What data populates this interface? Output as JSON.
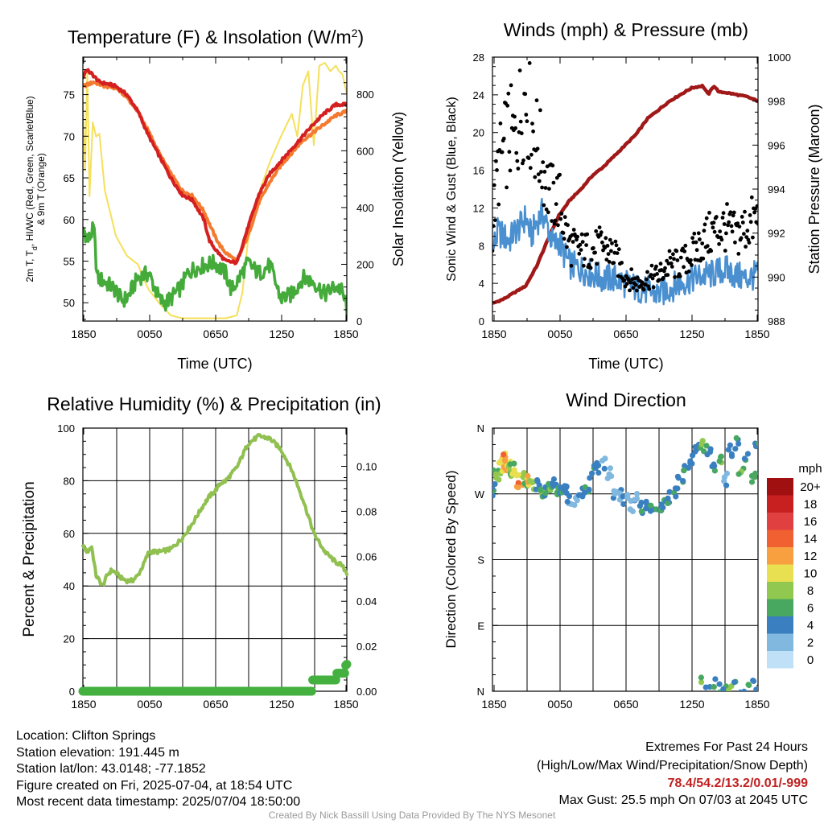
{
  "chart_data": [
    {
      "id": "temp",
      "type": "line",
      "title": "Temperature (F) & Insolation (W/m",
      "title_sup": "2",
      "title_end": ")",
      "xlabel": "Time (UTC)",
      "ylabel_lines": [
        "2m T, T",
        "d",
        ", HI/WC (Red, Green, Scarlet/Blue)",
        "& 9m T (Orange)"
      ],
      "y2label": "Solar Insolation (Yellow)",
      "x_ticks": [
        "1850",
        "0050",
        "0650",
        "1250",
        "1850"
      ],
      "y_ticks": [
        "50",
        "55",
        "60",
        "65",
        "70",
        "75"
      ],
      "y2_ticks": [
        "0",
        "200",
        "400",
        "600",
        "800"
      ],
      "ylim": [
        47.8,
        79.5
      ],
      "y2lim": [
        0,
        930
      ],
      "grid": false,
      "colors": {
        "temp": "#d42020",
        "hi": "#d6302c",
        "t9": "#f47a30",
        "dew": "#44aa3a",
        "solar": "#f5e05a"
      },
      "series": [
        {
          "name": "2m T",
          "color": "#d42020",
          "axis": "left",
          "x": [
            0,
            0.3,
            0.8,
            1.5,
            2.5,
            3,
            4,
            5,
            6,
            7,
            8,
            9,
            10,
            11,
            11.5,
            12,
            12.5,
            13,
            14,
            15,
            16,
            17,
            18,
            19,
            20,
            21,
            22,
            23,
            24
          ],
          "y": [
            77,
            78,
            77.5,
            76.5,
            76.2,
            76,
            75,
            73,
            70,
            67.5,
            65,
            63,
            62.3,
            60,
            57.5,
            56.5,
            55.7,
            55,
            54.8,
            59,
            63,
            65.5,
            67,
            68.5,
            70,
            71.5,
            72.8,
            73.8,
            73.8
          ]
        },
        {
          "name": "9m T",
          "color": "#f47a30",
          "axis": "left",
          "x": [
            0,
            1,
            2,
            3,
            4,
            5,
            6,
            7,
            8,
            9,
            10,
            11,
            12,
            12.5,
            13,
            14,
            15,
            16,
            17,
            18,
            19,
            20,
            21,
            22,
            23,
            24
          ],
          "y": [
            76,
            76.5,
            76,
            75.8,
            74.7,
            73,
            70.5,
            67.8,
            65.5,
            63.5,
            62.8,
            61,
            58,
            56.8,
            56,
            55,
            58,
            62,
            64.5,
            66.5,
            68,
            69.5,
            70.5,
            71.5,
            72.5,
            73
          ]
        },
        {
          "name": "Dewpoint",
          "color": "#44aa3a",
          "axis": "left",
          "x": [
            0,
            0.5,
            1,
            1.3,
            2,
            3,
            3.5,
            4,
            5,
            5.5,
            6,
            7,
            7.5,
            8,
            9,
            9.5,
            10,
            11,
            12,
            13,
            13.5,
            14,
            15,
            16,
            17,
            18,
            19,
            20,
            21,
            22,
            23,
            23.5,
            24
          ],
          "y": [
            59,
            57.5,
            59,
            53,
            52.5,
            51.5,
            50.3,
            50.5,
            53,
            53.3,
            53.5,
            50.3,
            50,
            50.5,
            52,
            53.5,
            54,
            54.5,
            54.8,
            53.5,
            51.5,
            52.5,
            54.8,
            53.5,
            54.5,
            50.5,
            51,
            53,
            52.5,
            51,
            52,
            51.5,
            49.5
          ]
        },
        {
          "name": "Solar insolation",
          "color": "#f5e05a",
          "axis": "right",
          "x": [
            0,
            0.2,
            0.4,
            0.6,
            0.9,
            1.2,
            1.5,
            2,
            2.5,
            3,
            4,
            5,
            5.5,
            6,
            7,
            8,
            9,
            10,
            13,
            14,
            14.5,
            15,
            16,
            17,
            18,
            19,
            19.5,
            20,
            20.5,
            21,
            21.5,
            22,
            22.5,
            23,
            23.3,
            23.6,
            24
          ],
          "y": [
            780,
            530,
            880,
            440,
            700,
            650,
            660,
            460,
            380,
            300,
            230,
            200,
            150,
            110,
            60,
            20,
            10,
            10,
            10,
            20,
            100,
            280,
            450,
            560,
            650,
            730,
            650,
            830,
            880,
            620,
            900,
            910,
            880,
            900,
            880,
            870,
            800
          ]
        }
      ]
    },
    {
      "id": "wind",
      "type": "scatter",
      "title": "Winds (mph) & Pressure (mb)",
      "xlabel": "Time (UTC)",
      "ylabel": "Sonic Wind & Gust (Blue, Black)",
      "y2label": "Station Pressure (Maroon)",
      "x_ticks": [
        "1850",
        "0050",
        "0650",
        "1250",
        "1850"
      ],
      "y_ticks": [
        "0",
        "4",
        "8",
        "12",
        "16",
        "20",
        "24",
        "28"
      ],
      "y2_ticks": [
        "988",
        "990",
        "992",
        "994",
        "996",
        "998",
        "1000"
      ],
      "ylim": [
        0,
        28
      ],
      "y2lim": [
        988,
        1000
      ],
      "grid": false,
      "colors": {
        "wind": "#4a90d0",
        "gust": "#000000",
        "pressure": "#a01818"
      },
      "series": [
        {
          "name": "Sonic wind",
          "color": "#4a90d0",
          "axis": "left",
          "x": [
            0,
            0.5,
            1,
            1.5,
            2,
            2.5,
            3,
            3.5,
            4,
            4.5,
            5,
            5.5,
            6,
            6.5,
            7,
            8,
            9,
            10,
            11,
            12,
            13,
            14,
            15,
            16,
            17,
            18,
            19,
            20,
            21,
            22,
            23,
            24
          ],
          "y": [
            7.5,
            9.5,
            9,
            8.5,
            9.5,
            10,
            11,
            9,
            10.5,
            11.5,
            10,
            8,
            8.5,
            7,
            6,
            5.5,
            5,
            4.5,
            4.5,
            4,
            3.5,
            3.2,
            2.8,
            3.5,
            4,
            4.5,
            4.8,
            5,
            5.5,
            4.8,
            4.5,
            5
          ]
        },
        {
          "name": "Gust",
          "color": "#000000",
          "axis": "left",
          "x": [
            0,
            0.5,
            1,
            1.5,
            2,
            2.5,
            3,
            3.5,
            4,
            4.5,
            5,
            5.5,
            6,
            6.5,
            7,
            8,
            9,
            10,
            11,
            12,
            13,
            14,
            15,
            16,
            17,
            18,
            19,
            20,
            21,
            22,
            23,
            24
          ],
          "y": [
            10,
            16,
            18,
            20,
            19,
            22,
            24,
            21,
            19,
            17,
            14,
            13,
            13,
            10,
            8,
            7.5,
            7.5,
            8,
            7,
            4.8,
            4,
            4.5,
            4.8,
            6,
            6,
            7,
            8.5,
            9.5,
            10,
            9,
            10,
            11
          ]
        },
        {
          "name": "Station pressure",
          "color": "#a01818",
          "axis": "right",
          "x": [
            0,
            1,
            2,
            3,
            4,
            5,
            6,
            7,
            8,
            9,
            10,
            11,
            12,
            13,
            14,
            15,
            16,
            17,
            18,
            19,
            19.5,
            20,
            20.5,
            21,
            22,
            23,
            24
          ],
          "y": [
            988.8,
            989,
            989.3,
            989.6,
            990.5,
            991.7,
            992.8,
            993.5,
            994,
            994.6,
            995,
            995.5,
            996,
            996.5,
            997.2,
            997.6,
            998,
            998.3,
            998.6,
            998.7,
            998.3,
            998.7,
            998.4,
            998.4,
            998.3,
            998.2,
            998
          ]
        }
      ]
    },
    {
      "id": "rh",
      "type": "line",
      "title": "Relative Humidity (%) & Precipitation (in)",
      "xlabel": "",
      "ylabel": "Percent & Precipitation",
      "x_ticks": [
        "1850",
        "0050",
        "0650",
        "1250",
        "1850"
      ],
      "y_ticks": [
        "0",
        "20",
        "40",
        "60",
        "80",
        "100"
      ],
      "y2_ticks": [
        "0.00",
        "0.02",
        "0.04",
        "0.06",
        "0.08",
        "0.10"
      ],
      "ylim": [
        0,
        100
      ],
      "y2lim": [
        0,
        0.117
      ],
      "grid": true,
      "colors": {
        "rh": "#90c050",
        "precip": "#44b040"
      },
      "series": [
        {
          "name": "Relative humidity",
          "color": "#90c050",
          "axis": "left",
          "x": [
            0,
            0.4,
            0.8,
            1.2,
            1.5,
            1.8,
            2.2,
            2.6,
            3,
            3.5,
            4,
            4.5,
            5,
            5.5,
            6,
            7,
            8,
            9,
            10,
            11,
            11.5,
            12,
            12.5,
            13,
            14,
            15,
            16,
            17,
            18,
            19,
            20,
            21,
            22,
            23,
            23.5,
            24
          ],
          "y": [
            55,
            53,
            55,
            44,
            42,
            40,
            44,
            46,
            45,
            43,
            42,
            42,
            44,
            48,
            53,
            53,
            54,
            58,
            64,
            71,
            74,
            76,
            79,
            80,
            85,
            94,
            97,
            96,
            92,
            84,
            73,
            60,
            53,
            49,
            48,
            45
          ]
        },
        {
          "name": "Precipitation",
          "color": "#44b040",
          "axis": "right",
          "x": [
            0,
            20.8,
            20.8,
            23,
            23,
            23.8,
            23.8,
            24
          ],
          "y": [
            0,
            0,
            0.005,
            0.005,
            0.008,
            0.008,
            0.011,
            0.012
          ]
        }
      ]
    },
    {
      "id": "dir",
      "type": "scatter",
      "title": "Wind Direction",
      "xlabel": "",
      "ylabel": "Direction (Colored By Speed)",
      "x_ticks": [
        "1850",
        "0050",
        "0650",
        "1250",
        "1850"
      ],
      "y_ticks": [
        "N",
        "E",
        "S",
        "W",
        "N"
      ],
      "ylim": [
        0,
        360
      ],
      "grid": true,
      "legend": {
        "title": "mph",
        "placement": "right",
        "labels": [
          "20+",
          "18",
          "16",
          "14",
          "12",
          "10",
          "8",
          "6",
          "4",
          "2",
          "0"
        ],
        "colors": [
          "#a01010",
          "#c82020",
          "#e04040",
          "#f06030",
          "#f8a040",
          "#e8e050",
          "#90c850",
          "#48a860",
          "#3a80c0",
          "#80b8e0",
          "#c0e0f8"
        ]
      },
      "series": [
        {
          "name": "Direction",
          "x": [
            0,
            0.3,
            0.5,
            0.8,
            1,
            1.2,
            1.4,
            1.6,
            1.8,
            2,
            2.3,
            2.5,
            2.8,
            3,
            3.3,
            3.6,
            4,
            4.3,
            4.6,
            5,
            5.3,
            5.6,
            6,
            6.3,
            6.6,
            7,
            7.5,
            8,
            8.5,
            9,
            9.5,
            10,
            10.5,
            11,
            11.5,
            12,
            12.5,
            13,
            13.5,
            14,
            14.5,
            15,
            15.5,
            16,
            16.5,
            17,
            17.5,
            18,
            18.5,
            19,
            19.5,
            20,
            20.5,
            21,
            21.5,
            22,
            22.5,
            23,
            23.5,
            24
          ],
          "y": [
            275,
            300,
            290,
            305,
            320,
            315,
            310,
            300,
            305,
            295,
            288,
            285,
            290,
            280,
            287,
            283,
            282,
            278,
            275,
            280,
            283,
            285,
            278,
            275,
            272,
            265,
            262,
            270,
            275,
            300,
            305,
            310,
            300,
            272,
            268,
            260,
            255,
            265,
            250,
            255,
            248,
            245,
            255,
            265,
            270,
            290,
            300,
            320,
            330,
            335,
            330,
            310,
            320,
            290,
            330,
            340,
            300,
            325,
            295,
            340
          ],
          "color_by_speed": [
            4,
            6,
            8,
            10,
            10,
            12,
            10,
            8,
            6,
            10,
            10,
            12,
            8,
            6,
            10,
            8,
            4,
            6,
            4,
            4,
            6,
            4,
            4,
            4,
            4,
            2,
            2,
            4,
            4,
            4,
            4,
            2,
            2,
            2,
            2,
            2,
            2,
            2,
            4,
            4,
            4,
            4,
            4,
            4,
            4,
            4,
            4,
            4,
            4,
            6,
            4,
            4,
            6,
            2,
            4,
            4,
            6,
            4,
            6,
            4
          ]
        },
        {
          "name": "Direction (near N)",
          "x": [
            19,
            19.5,
            20,
            20.3,
            20.5,
            21,
            21.5,
            22,
            22.5,
            23,
            23.5,
            24
          ],
          "y": [
            15,
            8,
            5,
            12,
            2,
            6,
            4,
            10,
            3,
            5,
            12,
            4
          ],
          "color_by_speed": [
            6,
            4,
            6,
            4,
            4,
            4,
            6,
            4,
            4,
            6,
            4,
            4
          ]
        }
      ]
    }
  ],
  "info": {
    "location": "Location: Clifton Springs",
    "elevation": "Station elevation: 191.445 m",
    "latlon": "Station lat/lon: 43.0148; -77.1852",
    "created": "Figure created on Fri, 2025-07-04, at 18:54 UTC",
    "recent": "Most recent data timestamp: 2025/07/04 18:50:00"
  },
  "extremes": {
    "title": "Extremes For Past 24 Hours",
    "subtitle": "(High/Low/Max Wind/Precipitation/Snow Depth)",
    "values": "78.4/54.2/13.2/0.01/-999",
    "values_color": "#c02020",
    "gust": "Max Gust: 25.5 mph On 07/03 at 2045 UTC"
  },
  "credit": "Created By Nick Bassill Using Data Provided By The NYS Mesonet"
}
